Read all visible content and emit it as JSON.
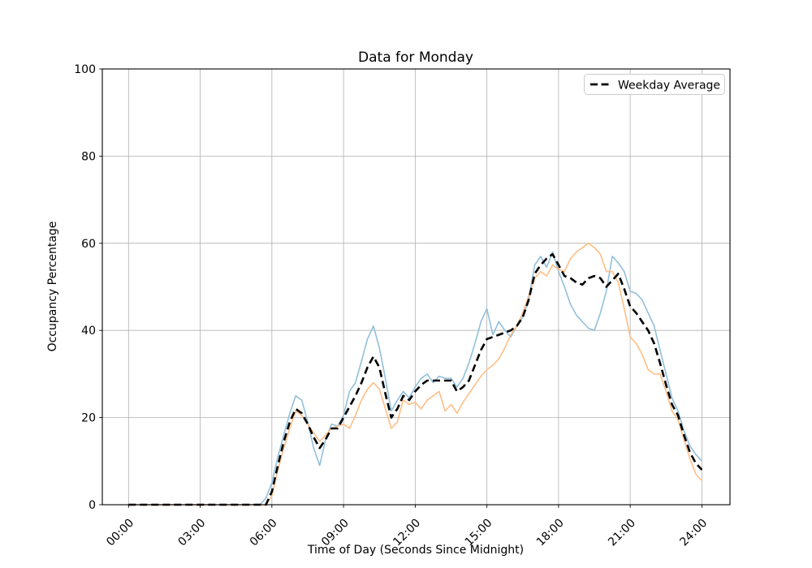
{
  "figure": {
    "background": "#ffffff",
    "gridline_color": "#b0b0b0",
    "spine_color": "#000000"
  },
  "chart": {
    "title": "Data for Monday",
    "xlabel": "Time of Day (Seconds Since Midnight)",
    "ylabel": "Occupancy Percentage",
    "legend_label": "Weekday Average"
  },
  "chart_data": {
    "type": "line",
    "title": "Data for Monday",
    "xlabel": "Time of Day (Seconds Since Midnight)",
    "ylabel": "Occupancy Percentage",
    "ylim": [
      0,
      100
    ],
    "xlim_hours": [
      0,
      24
    ],
    "y_ticks": [
      0,
      20,
      40,
      60,
      80,
      100
    ],
    "x_tick_hours": [
      0,
      3,
      6,
      9,
      12,
      15,
      18,
      21,
      24
    ],
    "x_tick_labels": [
      "00:00",
      "03:00",
      "06:00",
      "09:00",
      "12:00",
      "15:00",
      "18:00",
      "21:00",
      "24:00"
    ],
    "grid": true,
    "legend_position": "upper right",
    "legend_entries": [
      "Weekday Average"
    ],
    "x_hours": [
      0,
      0.25,
      0.5,
      0.75,
      1,
      1.25,
      1.5,
      1.75,
      2,
      2.25,
      2.5,
      2.75,
      3,
      3.25,
      3.5,
      3.75,
      4,
      4.25,
      4.5,
      4.75,
      5,
      5.25,
      5.5,
      5.75,
      6,
      6.25,
      6.5,
      6.75,
      7,
      7.25,
      7.5,
      7.75,
      8,
      8.25,
      8.5,
      8.75,
      9,
      9.25,
      9.5,
      9.75,
      10,
      10.25,
      10.5,
      10.75,
      11,
      11.25,
      11.5,
      11.75,
      12,
      12.25,
      12.5,
      12.75,
      13,
      13.25,
      13.5,
      13.75,
      14,
      14.25,
      14.5,
      14.75,
      15,
      15.25,
      15.5,
      15.75,
      16,
      16.25,
      16.5,
      16.75,
      17,
      17.25,
      17.5,
      17.75,
      18,
      18.25,
      18.5,
      18.75,
      19,
      19.25,
      19.5,
      19.75,
      20,
      20.25,
      20.5,
      20.75,
      21,
      21.25,
      21.5,
      21.75,
      22,
      22.25,
      22.5,
      22.75,
      23,
      23.25,
      23.5,
      23.75,
      24
    ],
    "series": [
      {
        "name": "unlabeled-blue",
        "color": "#92bfdb",
        "style": "solid",
        "linewidth": 1.6,
        "in_legend": false,
        "values": [
          0,
          0,
          0,
          0,
          0,
          0,
          0,
          0,
          0,
          0,
          0,
          0,
          0,
          0,
          0,
          0,
          0,
          0,
          0,
          0,
          0,
          0,
          0,
          1.5,
          5,
          11,
          16,
          21,
          25,
          24,
          19,
          13,
          9,
          15,
          18.5,
          18,
          20.5,
          26,
          28,
          33,
          38,
          41,
          36,
          29,
          21.5,
          24,
          26,
          24.5,
          27,
          29,
          30,
          28,
          29.5,
          29,
          29,
          27,
          29,
          32.5,
          37,
          42,
          45,
          39,
          42,
          40,
          38.5,
          41,
          43,
          47,
          55,
          57,
          54.5,
          58,
          53.5,
          50,
          46,
          43.5,
          42,
          40.5,
          40,
          44,
          49,
          57,
          55.5,
          53.5,
          49,
          48.5,
          47,
          44,
          41,
          35.5,
          30,
          24.5,
          21.5,
          17,
          13.5,
          11.5,
          10
        ]
      },
      {
        "name": "unlabeled-orange",
        "color": "#ffbe86",
        "style": "solid",
        "linewidth": 1.6,
        "in_legend": false,
        "values": [
          0,
          0,
          0,
          0,
          0,
          0,
          0,
          0,
          0,
          0,
          0,
          0,
          0,
          0,
          0,
          0,
          0,
          0,
          0,
          0,
          0,
          0,
          0,
          0,
          2,
          8,
          13,
          17.5,
          21.5,
          20.5,
          18.5,
          16.5,
          14.5,
          16,
          17.5,
          18,
          18.5,
          17.5,
          20.5,
          24,
          26.5,
          28,
          26.5,
          22,
          17.5,
          19,
          24,
          23,
          23.5,
          22,
          24,
          25,
          26,
          21.5,
          23,
          21,
          23.5,
          25.5,
          27.5,
          29.5,
          31,
          32,
          33.5,
          36,
          39,
          41,
          44,
          48,
          52,
          53.5,
          52.5,
          55,
          54,
          53.5,
          56.5,
          58,
          59,
          60,
          59,
          57.5,
          53.5,
          53.5,
          51,
          45,
          38.5,
          37,
          34.5,
          31,
          30,
          30,
          26,
          21.5,
          19.5,
          15,
          10.5,
          7,
          5.5
        ]
      },
      {
        "name": "Weekday Average",
        "color": "#000000",
        "style": "dashed",
        "linewidth": 2.6,
        "in_legend": true,
        "values": [
          0,
          0,
          0,
          0,
          0,
          0,
          0,
          0,
          0,
          0,
          0,
          0,
          0,
          0,
          0,
          0,
          0,
          0,
          0,
          0,
          0,
          0,
          0,
          0,
          3,
          9,
          14.5,
          19,
          22,
          21,
          18.5,
          15.5,
          13,
          15,
          17.5,
          17.5,
          20,
          22.5,
          25,
          28,
          31.5,
          34,
          31.5,
          25.5,
          20,
          22,
          25,
          24,
          26,
          27.5,
          28.5,
          28.5,
          28.5,
          28.5,
          28.5,
          26,
          27,
          28.5,
          32,
          35.5,
          38,
          38.5,
          39,
          39.5,
          40,
          41,
          43,
          47,
          53,
          55,
          56.5,
          57.5,
          55,
          52.5,
          52,
          51,
          50.5,
          52,
          52.5,
          52,
          50,
          51.5,
          53,
          49.5,
          45.5,
          44,
          42,
          40,
          37,
          32.5,
          27.5,
          23,
          20.5,
          16,
          12,
          9.5,
          8
        ]
      }
    ]
  }
}
